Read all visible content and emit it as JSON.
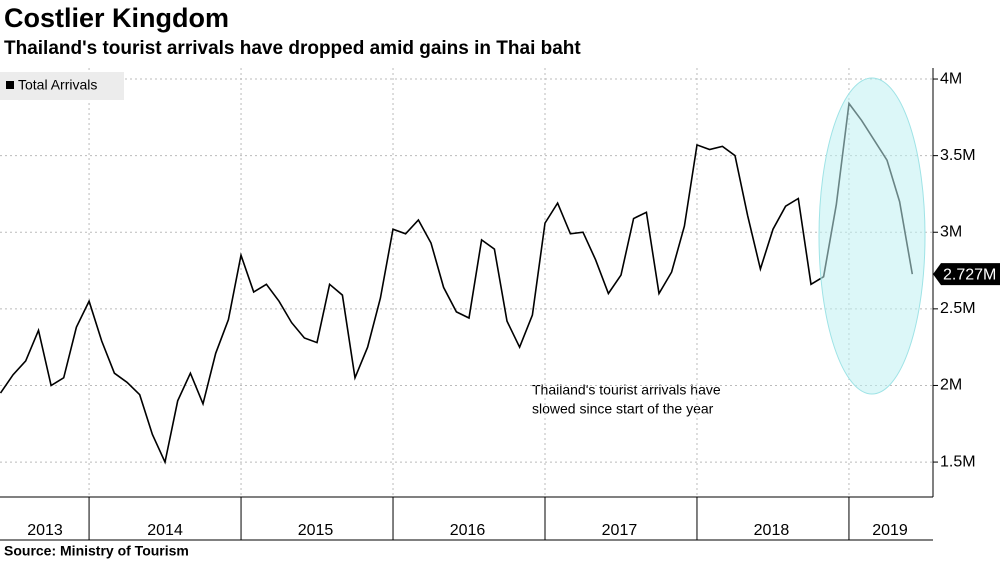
{
  "chart_data": {
    "type": "line",
    "title": "Costlier Kingdom",
    "subtitle": "Thailand's tourist arrivals have dropped amid gains in Thai baht",
    "source": "Source:  Ministry of Tourism",
    "annotation": [
      "Thailand's tourist arrivals have",
      "slowed since start of the year"
    ],
    "legend_corner": "top-left",
    "grid": true,
    "x": [
      2013.417,
      2013.5,
      2013.583,
      2013.667,
      2013.75,
      2013.833,
      2013.917,
      2014,
      2014.083,
      2014.167,
      2014.25,
      2014.333,
      2014.417,
      2014.5,
      2014.583,
      2014.667,
      2014.75,
      2014.833,
      2014.917,
      2015,
      2015.083,
      2015.167,
      2015.25,
      2015.333,
      2015.417,
      2015.5,
      2015.583,
      2015.667,
      2015.75,
      2015.833,
      2015.917,
      2016,
      2016.083,
      2016.167,
      2016.25,
      2016.333,
      2016.417,
      2016.5,
      2016.583,
      2016.667,
      2016.75,
      2016.833,
      2016.917,
      2017,
      2017.083,
      2017.167,
      2017.25,
      2017.333,
      2017.417,
      2017.5,
      2017.583,
      2017.667,
      2017.75,
      2017.833,
      2017.917,
      2018,
      2018.083,
      2018.167,
      2018.25,
      2018.333,
      2018.417,
      2018.5,
      2018.583,
      2018.667,
      2018.75,
      2018.833,
      2018.917,
      2019,
      2019.083,
      2019.167,
      2019.25,
      2019.333,
      2019.417
    ],
    "series": [
      {
        "name": "Total Arrivals",
        "color": "#000000",
        "values": [
          1.95,
          2.07,
          2.16,
          2.36,
          2.0,
          2.05,
          2.38,
          2.55,
          2.29,
          2.08,
          2.02,
          1.94,
          1.68,
          1.5,
          1.9,
          2.08,
          1.88,
          2.21,
          2.43,
          2.85,
          2.61,
          2.66,
          2.55,
          2.41,
          2.31,
          2.28,
          2.66,
          2.59,
          2.05,
          2.25,
          2.57,
          3.02,
          2.99,
          3.08,
          2.93,
          2.64,
          2.48,
          2.44,
          2.95,
          2.89,
          2.42,
          2.25,
          2.46,
          3.06,
          3.19,
          2.99,
          3.0,
          2.82,
          2.6,
          2.72,
          3.09,
          3.13,
          2.6,
          2.74,
          3.04,
          3.57,
          3.54,
          3.56,
          3.5,
          3.11,
          2.76,
          3.02,
          3.17,
          3.22,
          2.66,
          2.71,
          3.18,
          3.84,
          3.73,
          3.6,
          3.47,
          3.2,
          2.727
        ],
        "last_value_label": "2.727M"
      }
    ],
    "xlim": [
      2013.414,
      2019.553
    ],
    "x_year_boundaries": [
      2014,
      2015,
      2016,
      2017,
      2018,
      2019
    ],
    "xticks": [
      {
        "value": 2013.71,
        "label": "2013"
      },
      {
        "value": 2014.5,
        "label": "2014"
      },
      {
        "value": 2015.49,
        "label": "2015"
      },
      {
        "value": 2016.49,
        "label": "2016"
      },
      {
        "value": 2017.49,
        "label": "2017"
      },
      {
        "value": 2018.49,
        "label": "2018"
      },
      {
        "value": 2019.27,
        "label": "2019"
      }
    ],
    "ylim": [
      1.272,
      4.072
    ],
    "yticks": [
      {
        "value": 1.5,
        "label": "1.5M"
      },
      {
        "value": 2,
        "label": "2M"
      },
      {
        "value": 2.5,
        "label": "2.5M"
      },
      {
        "value": 3,
        "label": "3M"
      },
      {
        "value": 3.5,
        "label": "3.5M"
      },
      {
        "value": 4,
        "label": "4M"
      }
    ]
  }
}
